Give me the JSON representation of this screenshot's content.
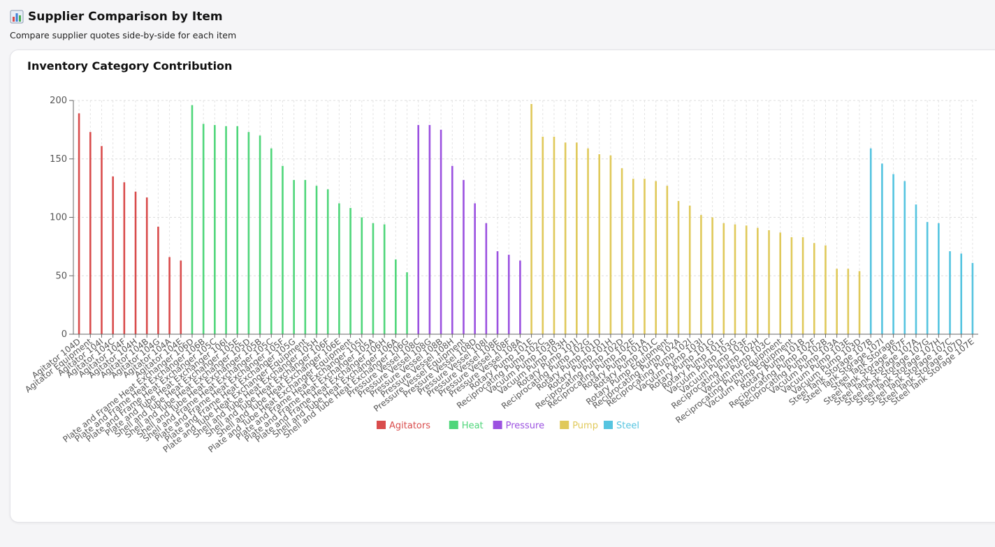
{
  "header": {
    "title": "Supplier Comparison by Item",
    "subtitle": "Compare supplier quotes side-by-side for each item"
  },
  "card": {
    "title": "Inventory Category Contribution"
  },
  "chart_data": {
    "type": "bar",
    "title": "Inventory Category Contribution",
    "xlabel": "",
    "ylabel": "",
    "ylim": [
      0,
      200
    ],
    "yticks": [
      0,
      50,
      100,
      150,
      200
    ],
    "grid": true,
    "legend_position": "bottom-center",
    "legend": [
      {
        "name": "Agitators",
        "color": "#d94c4c"
      },
      {
        "name": "Heat",
        "color": "#4fd67a"
      },
      {
        "name": "Pressure",
        "color": "#9b51e0"
      },
      {
        "name": "Pump",
        "color": "#e0c95a"
      },
      {
        "name": "Steel",
        "color": "#55c4e0"
      }
    ],
    "bars": [
      {
        "label": "Agitator 104D",
        "value": 189,
        "group": 0
      },
      {
        "label": "Agitator Equipment",
        "value": 173,
        "group": 0
      },
      {
        "label": "Agitator 104I",
        "value": 161,
        "group": 0
      },
      {
        "label": "Agitator 104C",
        "value": 135,
        "group": 0
      },
      {
        "label": "Agitator 104F",
        "value": 130,
        "group": 0
      },
      {
        "label": "Agitator 104H",
        "value": 122,
        "group": 0
      },
      {
        "label": "Agitator 104B",
        "value": 117,
        "group": 0
      },
      {
        "label": "Agitator 104G",
        "value": 92,
        "group": 0
      },
      {
        "label": "Agitator 104A",
        "value": 66,
        "group": 0
      },
      {
        "label": "Agitator 104E",
        "value": 63,
        "group": 0
      },
      {
        "label": "Plate and Frame Heat Exchanger 106D",
        "value": 196,
        "group": 1
      },
      {
        "label": "Plate and Frame Heat Exchanger 106B",
        "value": 180,
        "group": 1
      },
      {
        "label": "Plate and Frame Heat Exchanger 105C",
        "value": 179,
        "group": 1
      },
      {
        "label": "Plate and Tube Heat Exchanger 106I",
        "value": 178,
        "group": 1
      },
      {
        "label": "Shell and Tube Heat Exchanger 105E",
        "value": 178,
        "group": 1
      },
      {
        "label": "Shell and Tube Heat Exchanger 105D",
        "value": 173,
        "group": 1
      },
      {
        "label": "Shell and Tube Heat Exchanger 105B",
        "value": 170,
        "group": 1
      },
      {
        "label": "Shell and Frame Heat Exchanger 105C",
        "value": 159,
        "group": 1
      },
      {
        "label": "Plate and Frame Heat Exchanger 105F",
        "value": 144,
        "group": 1
      },
      {
        "label": "Plate and Frame Heat Exchanger 105G",
        "value": 132,
        "group": 1
      },
      {
        "label": "Plate and Tube Heat Exchanger Equipment",
        "value": 132,
        "group": 1
      },
      {
        "label": "Shell and Tube Heat Exchanger 105H",
        "value": 127,
        "group": 1
      },
      {
        "label": "Shell and Tube Heat Exchanger 106F",
        "value": 124,
        "group": 1
      },
      {
        "label": "Shell and Tube Heat Exchanger 106E",
        "value": 112,
        "group": 1
      },
      {
        "label": "Plate and Tube Heat Exchanger Equipment",
        "value": 108,
        "group": 1
      },
      {
        "label": "Plate and Frame Heat Exchanger 105I",
        "value": 100,
        "group": 1
      },
      {
        "label": "Plate and Frame Heat Exchanger 105A",
        "value": 95,
        "group": 1
      },
      {
        "label": "Plate and Frame Heat Exchanger 106H",
        "value": 94,
        "group": 1
      },
      {
        "label": "Shell and Tube Heat Exchanger 106A",
        "value": 64,
        "group": 1
      },
      {
        "label": "Shell and Tube Heat Exchanger 106G",
        "value": 53,
        "group": 1
      },
      {
        "label": "Pressure Vessel 108C",
        "value": 179,
        "group": 2
      },
      {
        "label": "Pressure Vessel 108G",
        "value": 179,
        "group": 2
      },
      {
        "label": "Pressure Vessel 108B",
        "value": 175,
        "group": 2
      },
      {
        "label": "Pressure Vessel 108H",
        "value": 144,
        "group": 2
      },
      {
        "label": "Pressure Vessel Equipment",
        "value": 132,
        "group": 2
      },
      {
        "label": "Pressure Vessel 108D",
        "value": 112,
        "group": 2
      },
      {
        "label": "Pressure Vessel 108I",
        "value": 95,
        "group": 2
      },
      {
        "label": "Pressure Vessel 108E",
        "value": 71,
        "group": 2
      },
      {
        "label": "Pressure Vessel 108F",
        "value": 68,
        "group": 2
      },
      {
        "label": "Pressure Vessel 108A",
        "value": 63,
        "group": 2
      },
      {
        "label": "Rotary Pump 101E",
        "value": 197,
        "group": 3
      },
      {
        "label": "Reciprocating Pump 102C",
        "value": 169,
        "group": 3
      },
      {
        "label": "Vacuum Pump 103B",
        "value": 169,
        "group": 3
      },
      {
        "label": "Vacuum Pump 103H",
        "value": 164,
        "group": 3
      },
      {
        "label": "Rotary Pump 101I",
        "value": 164,
        "group": 3
      },
      {
        "label": "Reciprocating Pump 102G",
        "value": 159,
        "group": 3
      },
      {
        "label": "Rotary Pump 101D",
        "value": 154,
        "group": 3
      },
      {
        "label": "Rotary Pump 101H",
        "value": 153,
        "group": 3
      },
      {
        "label": "Reciprocating Pump 102D",
        "value": 142,
        "group": 3
      },
      {
        "label": "Reciprocating Pump 102E",
        "value": 133,
        "group": 3
      },
      {
        "label": "Rotary Pump 101A",
        "value": 133,
        "group": 3
      },
      {
        "label": "Rotary Pump 101C",
        "value": 131,
        "group": 3
      },
      {
        "label": "Rotary Pump Equipment",
        "value": 127,
        "group": 3
      },
      {
        "label": "Reciprocating Pump 102A",
        "value": 114,
        "group": 3
      },
      {
        "label": "Reciprocating Pump 102I",
        "value": 110,
        "group": 3
      },
      {
        "label": "Vacuum Pump 103I",
        "value": 102,
        "group": 3
      },
      {
        "label": "Rotary Pump 101G",
        "value": 100,
        "group": 3
      },
      {
        "label": "Rotary Pump 101F",
        "value": 95,
        "group": 3
      },
      {
        "label": "Vacuum Pump 103G",
        "value": 94,
        "group": 3
      },
      {
        "label": "Vacuum Pump 103F",
        "value": 93,
        "group": 3
      },
      {
        "label": "Reciprocating Pump 102H",
        "value": 91,
        "group": 3
      },
      {
        "label": "Vacuum Pump 103C",
        "value": 89,
        "group": 3
      },
      {
        "label": "Reciprocating Pump Equipment",
        "value": 87,
        "group": 3
      },
      {
        "label": "Vacuum Pump Equipment",
        "value": 83,
        "group": 3
      },
      {
        "label": "Rotary Pump 101B",
        "value": 83,
        "group": 3
      },
      {
        "label": "Reciprocating Pump 102F",
        "value": 78,
        "group": 3
      },
      {
        "label": "Reciprocating Pump 102B",
        "value": 76,
        "group": 3
      },
      {
        "label": "Vacuum Pump 103A",
        "value": 56,
        "group": 3
      },
      {
        "label": "Vacuum Pump 103E",
        "value": 56,
        "group": 3
      },
      {
        "label": "Vacuum Pump 103D",
        "value": 54,
        "group": 3
      },
      {
        "label": "Steel Tank Storage 107B",
        "value": 159,
        "group": 4
      },
      {
        "label": "Steel Tank Storage 107I",
        "value": 146,
        "group": 4
      },
      {
        "label": "Steel Tank Storage",
        "value": 137,
        "group": 4
      },
      {
        "label": "Steel Tank Storage 107F",
        "value": 131,
        "group": 4
      },
      {
        "label": "Steel Tank Storage 107A",
        "value": 111,
        "group": 4
      },
      {
        "label": "Steel Tank Storage 107G",
        "value": 96,
        "group": 4
      },
      {
        "label": "Steel Tank Storage 107H",
        "value": 95,
        "group": 4
      },
      {
        "label": "Steel Tank Storage 107C",
        "value": 71,
        "group": 4
      },
      {
        "label": "Steel Tank Storage 107D",
        "value": 69,
        "group": 4
      },
      {
        "label": "Steel Tank Storage 107E",
        "value": 61,
        "group": 4
      }
    ]
  }
}
